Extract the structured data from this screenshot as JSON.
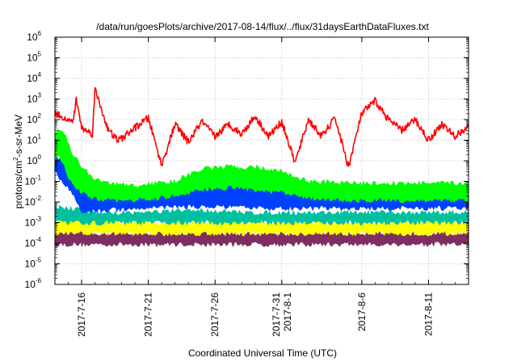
{
  "chart_data": {
    "type": "line",
    "title": "/data/run/goesPlots/archive/2017-08-14/flux/../flux/31daysEarthDataFluxes.txt",
    "xlabel": "Coordinated Universal Time (UTC)",
    "ylabel": {
      "pre": "protons/cm",
      "sup": "2",
      "post": "-s-sr-MeV"
    },
    "yscale": "log",
    "ylim": [
      1e-06,
      1000000.0
    ],
    "xlim": [
      "2017-07-14",
      "2017-08-14"
    ],
    "grid": true,
    "legend": "none",
    "x_ticks": [
      {
        "date": "2017-07-16",
        "lines": [
          "2017-7-16"
        ]
      },
      {
        "date": "2017-07-21",
        "lines": [
          "2017-7-21"
        ]
      },
      {
        "date": "2017-07-26",
        "lines": [
          "2017-7-26"
        ]
      },
      {
        "date": "2017-07-31",
        "lines": [
          "2017-7-31",
          "2017-8-1"
        ]
      },
      {
        "date": "2017-08-06",
        "lines": [
          "2017-8-6"
        ]
      },
      {
        "date": "2017-08-11",
        "lines": [
          "2017-8-11"
        ]
      }
    ],
    "y_ticks": [
      {
        "value": 1e-06,
        "base": "10",
        "exp": "-6"
      },
      {
        "value": 1e-05,
        "base": "10",
        "exp": "-5"
      },
      {
        "value": 0.0001,
        "base": "10",
        "exp": "-4"
      },
      {
        "value": 0.001,
        "base": "10",
        "exp": "-3"
      },
      {
        "value": 0.01,
        "base": "10",
        "exp": "-2"
      },
      {
        "value": 0.1,
        "base": "10",
        "exp": "-1"
      },
      {
        "value": 1.0,
        "base": "10",
        "exp": "0"
      },
      {
        "value": 10.0,
        "base": "10",
        "exp": "1"
      },
      {
        "value": 100.0,
        "base": "10",
        "exp": "2"
      },
      {
        "value": 1000.0,
        "base": "10",
        "exp": "3"
      },
      {
        "value": 10000.0,
        "base": "10",
        "exp": "4"
      },
      {
        "value": 100000.0,
        "base": "10",
        "exp": "5"
      },
      {
        "value": 1000000.0,
        "base": "10",
        "exp": "6"
      }
    ],
    "series": [
      {
        "color": "#7f2f5f",
        "x": [
          "2017-07-14",
          "2017-07-20",
          "2017-07-28",
          "2017-08-05",
          "2017-08-14"
        ],
        "hi": [
          0.0003,
          0.0003,
          0.0003,
          0.0003,
          0.0003
        ],
        "lo": [
          9e-05,
          9e-05,
          9e-05,
          9e-05,
          9e-05
        ]
      },
      {
        "color": "#ffff00",
        "x": [
          "2017-07-14",
          "2017-07-16",
          "2017-07-20",
          "2017-07-28",
          "2017-08-05",
          "2017-08-14"
        ],
        "hi": [
          0.0015,
          0.0012,
          0.001,
          0.001,
          0.001,
          0.001
        ],
        "lo": [
          0.0003,
          0.0003,
          0.0003,
          0.0003,
          0.0003,
          0.0003
        ]
      },
      {
        "color": "#00c0a0",
        "x": [
          "2017-07-14",
          "2017-07-16",
          "2017-07-17",
          "2017-07-20",
          "2017-07-25",
          "2017-07-28",
          "2017-08-05",
          "2017-08-14"
        ],
        "hi": [
          0.006,
          0.004,
          0.003,
          0.003,
          0.004,
          0.003,
          0.003,
          0.003
        ],
        "lo": [
          0.001,
          0.001,
          0.001,
          0.001,
          0.001,
          0.001,
          0.001,
          0.001
        ]
      },
      {
        "color": "#0040ff",
        "x": [
          "2017-07-14",
          "2017-07-14.5",
          "2017-07-15.3",
          "2017-07-16",
          "2017-07-17",
          "2017-07-18",
          "2017-07-20",
          "2017-07-23",
          "2017-07-26",
          "2017-07-29",
          "2017-08-01",
          "2017-08-05",
          "2017-08-10",
          "2017-08-14"
        ],
        "hi": [
          2,
          1,
          0.5,
          0.08,
          0.03,
          0.025,
          0.03,
          0.06,
          0.07,
          0.05,
          0.03,
          0.03,
          0.03,
          0.03
        ],
        "lo": [
          0.3,
          0.1,
          0.03,
          0.003,
          0.004,
          0.004,
          0.005,
          0.006,
          0.006,
          0.005,
          0.005,
          0.005,
          0.005,
          0.005
        ]
      },
      {
        "color": "#00ff00",
        "x": [
          "2017-07-14",
          "2017-07-14.3",
          "2017-07-14.7",
          "2017-07-15.2",
          "2017-07-16",
          "2017-07-17",
          "2017-07-18",
          "2017-07-20",
          "2017-07-23",
          "2017-07-25",
          "2017-07-27",
          "2017-07-29",
          "2017-07-31",
          "2017-08-02",
          "2017-08-05",
          "2017-08-14"
        ],
        "hi": [
          20,
          40,
          25,
          3,
          0.5,
          0.12,
          0.08,
          0.06,
          0.1,
          0.4,
          0.5,
          0.5,
          0.3,
          0.1,
          0.08,
          0.08
        ],
        "lo": [
          1,
          2,
          0.5,
          0.1,
          0.03,
          0.015,
          0.012,
          0.012,
          0.02,
          0.04,
          0.05,
          0.04,
          0.03,
          0.015,
          0.012,
          0.012
        ]
      },
      {
        "color": "#ff0000",
        "line": true,
        "x": [
          "2017-07-14",
          "2017-07-14.5",
          "2017-07-15",
          "2017-07-15.4",
          "2017-07-15.6",
          "2017-07-16",
          "2017-07-16.8",
          "2017-07-17",
          "2017-07-18",
          "2017-07-18.7",
          "2017-07-19",
          "2017-07-20",
          "2017-07-21",
          "2017-07-22",
          "2017-07-23",
          "2017-07-24",
          "2017-07-25",
          "2017-07-26",
          "2017-07-27",
          "2017-07-28",
          "2017-07-29",
          "2017-07-30",
          "2017-07-31",
          "2017-08-01",
          "2017-08-02",
          "2017-08-03",
          "2017-08-04",
          "2017-08-05",
          "2017-08-06",
          "2017-08-07",
          "2017-08-08",
          "2017-08-09",
          "2017-08-10",
          "2017-08-11",
          "2017-08-12",
          "2017-08-13",
          "2017-08-14"
        ],
        "y": [
          200,
          150,
          80,
          100,
          1000,
          40,
          20,
          3000,
          30,
          10,
          12,
          40,
          120,
          0.6,
          60,
          8,
          80,
          15,
          60,
          20,
          150,
          15,
          80,
          0.8,
          100,
          15,
          120,
          0.5,
          200,
          800,
          100,
          30,
          100,
          10,
          60,
          15,
          50
        ]
      }
    ]
  }
}
